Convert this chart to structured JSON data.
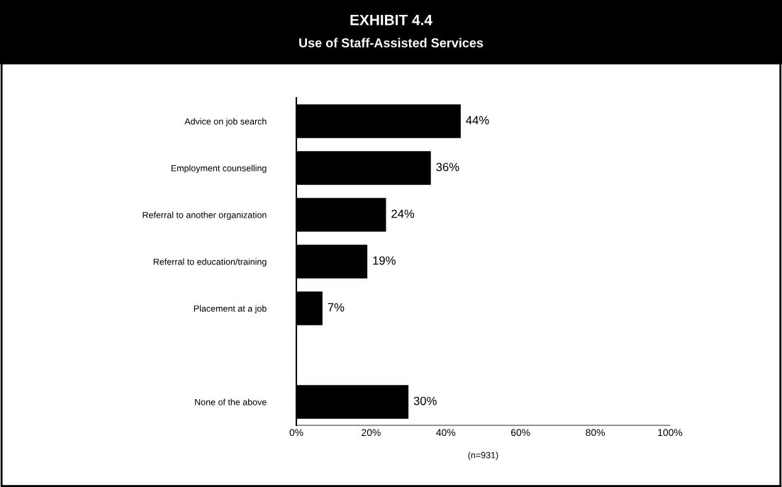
{
  "chart_data": {
    "type": "bar",
    "orientation": "horizontal",
    "title": "EXHIBIT 4.4",
    "subtitle": "Use of Staff-Assisted Services",
    "categories": [
      "Advice on job search",
      "Employment counselling",
      "Referral to another organization",
      "Referral to education/training",
      "Placement at a job",
      null,
      "None of the above"
    ],
    "values": [
      44,
      36,
      24,
      19,
      7,
      null,
      30
    ],
    "value_labels": [
      "44%",
      "36%",
      "24%",
      "19%",
      "7%",
      null,
      "30%"
    ],
    "color": "#000000",
    "xlim": [
      0,
      100
    ],
    "xticks": [
      {
        "value": 0,
        "label": "0%"
      },
      {
        "value": 20,
        "label": "20%"
      },
      {
        "value": 40,
        "label": "40%"
      },
      {
        "value": 60,
        "label": "60%"
      },
      {
        "value": 80,
        "label": "80%"
      },
      {
        "value": 100,
        "label": "100%"
      }
    ],
    "xlabel": "(n=931)",
    "grid": false
  }
}
